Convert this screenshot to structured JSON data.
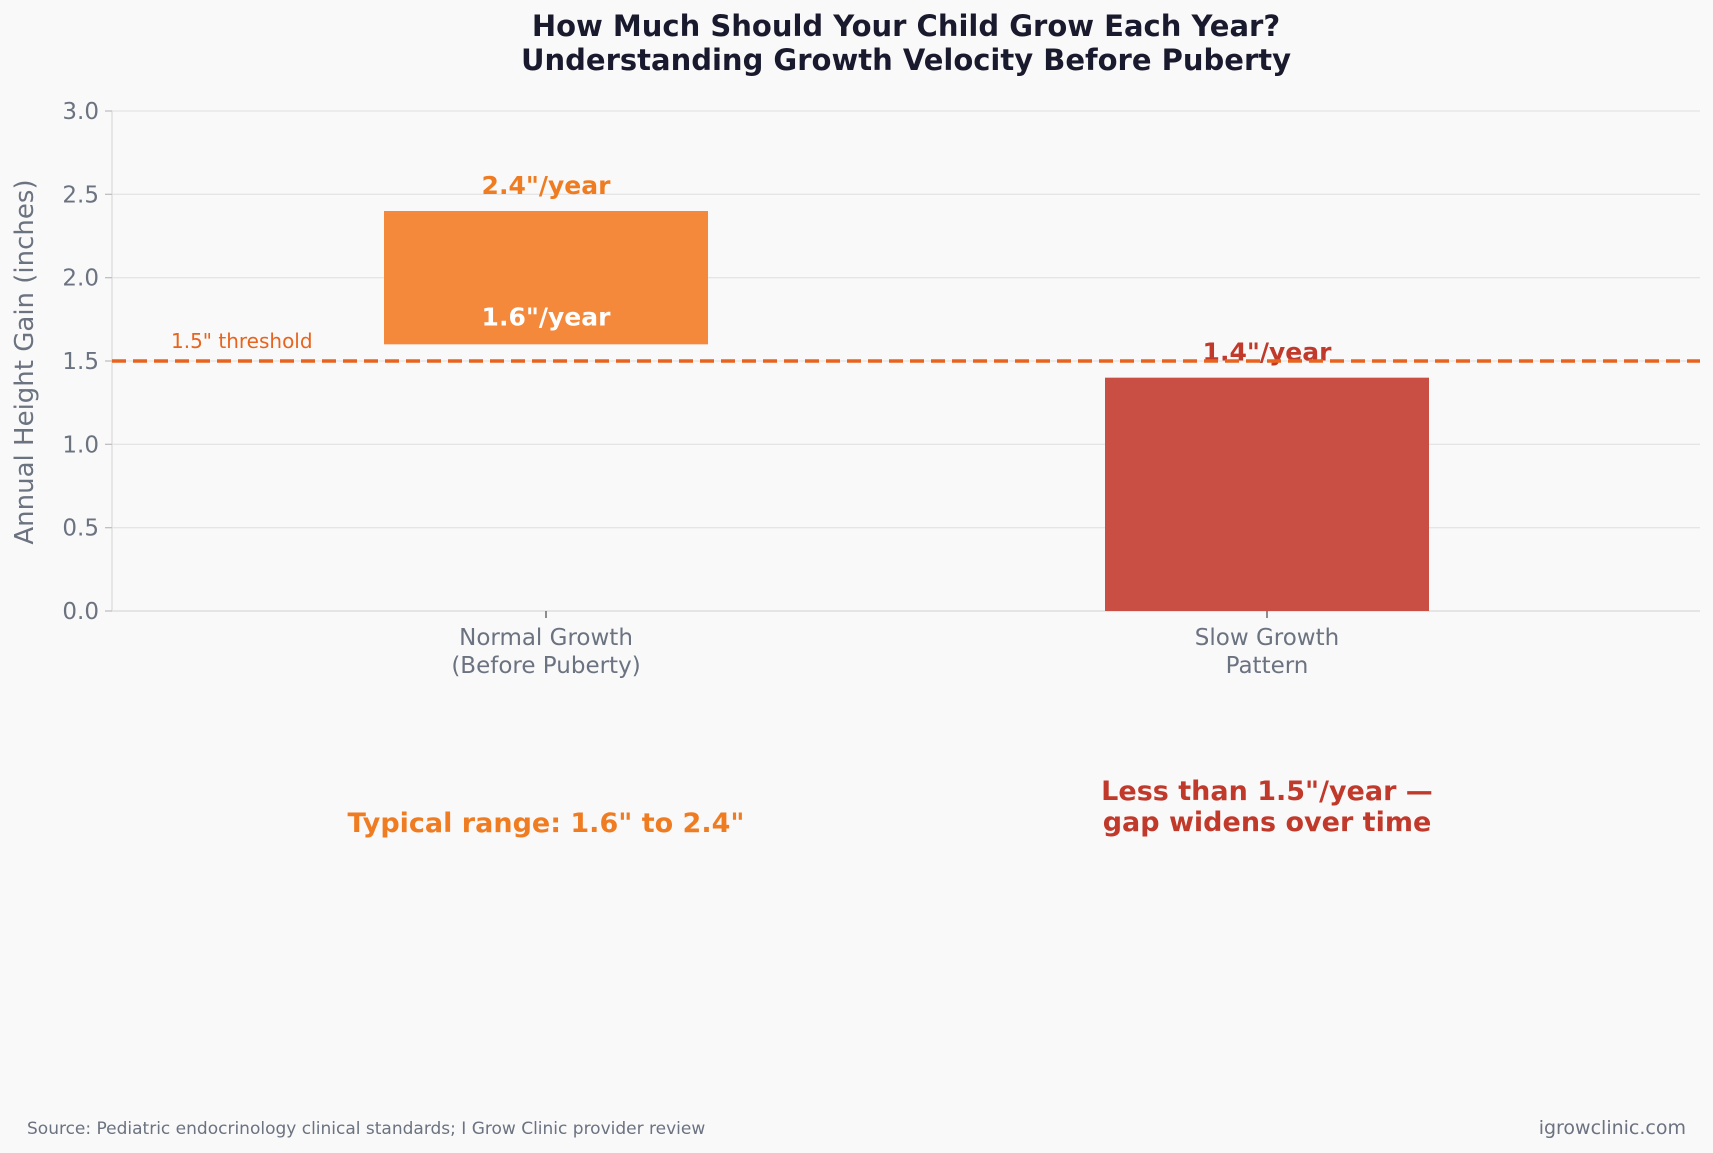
{
  "chart_data": {
    "type": "bar",
    "title_lines": [
      "How Much Should Your Child Grow Each Year?",
      "Understanding Growth Velocity Before Puberty"
    ],
    "ylabel": "Annual Height Gain (inches)",
    "ylim": [
      0,
      3.0
    ],
    "yticks": [
      "0.0",
      "0.5",
      "1.0",
      "1.5",
      "2.0",
      "2.5",
      "3.0"
    ],
    "grid": true,
    "categories": [
      {
        "lines": [
          "Normal Growth",
          "(Before Puberty)"
        ]
      },
      {
        "lines": [
          "Slow Growth",
          "Pattern"
        ]
      }
    ],
    "bars": [
      {
        "bottom": 1.6,
        "top": 2.4,
        "color": "#f4893c",
        "top_label": "2.4\"/year",
        "inner_label": "1.6\"/year",
        "top_label_color": "#f07c22",
        "inner_label_color": "#ffffff"
      },
      {
        "bottom": 0.0,
        "top": 1.4,
        "color": "#c94f44",
        "top_label": "1.4\"/year",
        "top_label_color": "#c0392b"
      }
    ],
    "threshold": {
      "value": 1.5,
      "label": "1.5\" threshold",
      "color": "#e8641e"
    },
    "annotations": [
      {
        "lines": [
          "Typical range: 1.6\" to 2.4\""
        ],
        "color": "#f07c22"
      },
      {
        "lines": [
          "Less than 1.5\"/year —",
          "gap widens over time"
        ],
        "color": "#c0392b"
      }
    ]
  },
  "footer": {
    "source": "Source: Pediatric endocrinology clinical standards; I Grow Clinic provider review",
    "site": "igrowclinic.com"
  },
  "colors": {
    "axis_text": "#6b7280",
    "title": "#1a1a2e",
    "grid": "#e5e5e5",
    "background": "#f9f9f9"
  }
}
